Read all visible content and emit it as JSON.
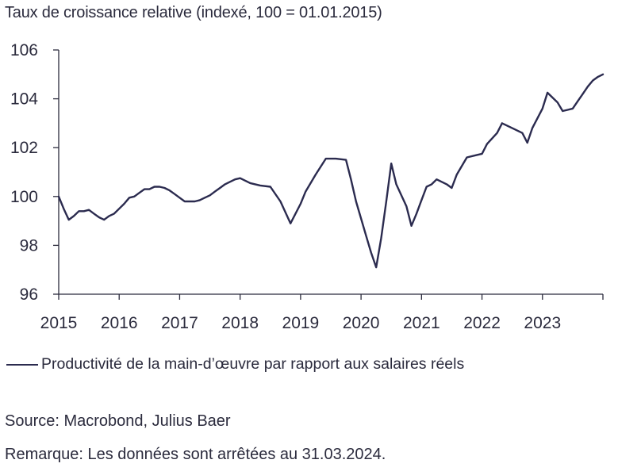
{
  "chart_data": {
    "type": "line",
    "title": "Taux de croissance relative (indexé, 100 = 01.01.2015)",
    "xlabel": "",
    "ylabel": "",
    "x_tick_labels": [
      "2015",
      "2016",
      "2017",
      "2018",
      "2019",
      "2020",
      "2021",
      "2022",
      "2023"
    ],
    "x_range": [
      2015.0,
      2024.0
    ],
    "y_tick_labels": [
      "96",
      "98",
      "100",
      "102",
      "104",
      "106"
    ],
    "y_ticks": [
      96,
      98,
      100,
      102,
      104,
      106
    ],
    "ylim": [
      96,
      106
    ],
    "grid": false,
    "legend_position": "bottom-left",
    "series": [
      {
        "name": "Productivité de la main-d’œuvre par rapport aux salaires réels",
        "color": "#2b2b4f",
        "x": [
          2015.0,
          2015.083,
          2015.167,
          2015.25,
          2015.333,
          2015.417,
          2015.5,
          2015.583,
          2015.667,
          2015.75,
          2015.833,
          2015.917,
          2016.0,
          2016.083,
          2016.167,
          2016.25,
          2016.333,
          2016.417,
          2016.5,
          2016.583,
          2016.667,
          2016.75,
          2016.833,
          2016.917,
          2017.0,
          2017.083,
          2017.167,
          2017.25,
          2017.333,
          2017.417,
          2017.5,
          2017.583,
          2017.667,
          2017.75,
          2017.833,
          2017.917,
          2018.0,
          2018.167,
          2018.333,
          2018.5,
          2018.667,
          2018.833,
          2019.0,
          2019.083,
          2019.25,
          2019.417,
          2019.583,
          2019.75,
          2019.833,
          2019.917,
          2020.0,
          2020.083,
          2020.167,
          2020.25,
          2020.333,
          2020.417,
          2020.5,
          2020.583,
          2020.75,
          2020.833,
          2020.917,
          2021.0,
          2021.083,
          2021.167,
          2021.25,
          2021.417,
          2021.5,
          2021.583,
          2021.75,
          2021.917,
          2022.0,
          2022.083,
          2022.25,
          2022.333,
          2022.5,
          2022.667,
          2022.75,
          2022.833,
          2023.0,
          2023.083,
          2023.25,
          2023.333,
          2023.417,
          2023.5,
          2023.583,
          2023.667,
          2023.75,
          2023.833,
          2023.917,
          2024.0
        ],
        "values": [
          100.0,
          99.5,
          99.05,
          99.2,
          99.4,
          99.4,
          99.45,
          99.3,
          99.15,
          99.05,
          99.2,
          99.3,
          99.5,
          99.7,
          99.95,
          100.0,
          100.15,
          100.3,
          100.3,
          100.4,
          100.4,
          100.35,
          100.25,
          100.1,
          99.95,
          99.8,
          99.8,
          99.8,
          99.85,
          99.95,
          100.05,
          100.2,
          100.35,
          100.5,
          100.6,
          100.7,
          100.75,
          100.55,
          100.45,
          100.4,
          99.8,
          98.9,
          99.7,
          100.2,
          100.9,
          101.55,
          101.55,
          101.5,
          100.7,
          99.8,
          99.1,
          98.4,
          97.7,
          97.1,
          98.3,
          99.8,
          101.35,
          100.5,
          99.6,
          98.8,
          99.3,
          99.85,
          100.4,
          100.5,
          100.7,
          100.5,
          100.35,
          100.9,
          101.6,
          101.7,
          101.75,
          102.15,
          102.6,
          103.0,
          102.8,
          102.6,
          102.2,
          102.8,
          103.6,
          104.25,
          103.85,
          103.5,
          103.55,
          103.6,
          103.9,
          104.2,
          104.5,
          104.75,
          104.9,
          105.0
        ]
      }
    ]
  },
  "legend": {
    "label": "Productivité de la main-d’œuvre par rapport aux salaires réels"
  },
  "notes": {
    "source": "Source: Macrobond, Julius Baer",
    "remark": "Remarque: Les données sont arrêtées au 31.03.2024."
  }
}
